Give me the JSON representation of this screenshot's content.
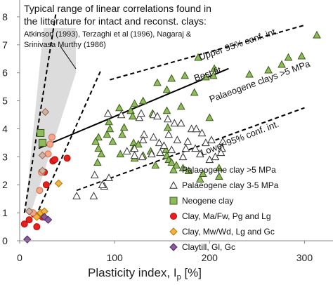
{
  "chart_data": {
    "type": "scatter",
    "xlabel_main": "Plasticity index, I",
    "xlabel_sub": "p",
    "xlabel_unit": " [%]",
    "xlim": [
      0,
      330
    ],
    "ylim": [
      0,
      8.6
    ],
    "xticks": [
      0,
      100,
      200,
      300
    ],
    "yticks": [
      0,
      1,
      2,
      3,
      4,
      5,
      6,
      7,
      8
    ],
    "grid": false,
    "legend_position": "lower-right",
    "annotations": {
      "title_line1": "Typical range of  linear correlations found in",
      "title_line2": "the litterature for intact and reconst. clays:",
      "refs_line1": "Atkinson (1993), Terzaghi et al (1996), Nagaraj &",
      "refs_line2": "Srinivasa Murthy (1986)",
      "upper_label": "Upper 95% conf. int.",
      "best_fit_label": "Best fit",
      "palaeogene_fit_label": "Palaeogene clays >5 MPa",
      "lower_label": "Lower 95% conf. int."
    },
    "lines": {
      "best_fit": [
        [
          20,
          3.3
        ],
        [
          220,
          6.15
        ]
      ],
      "upper_ci": [
        [
          95,
          5.75
        ],
        [
          300,
          7.7
        ]
      ],
      "lower_ci": [
        [
          60,
          1.8
        ],
        [
          300,
          4.75
        ]
      ],
      "range_left": [
        [
          5,
          1.0
        ],
        [
          38,
          8.1
        ]
      ],
      "range_right": [
        [
          20,
          1.1
        ],
        [
          85,
          6.05
        ]
      ]
    },
    "series": [
      {
        "name": "Palaeogene clay >5 MPa",
        "marker": "triangle-up",
        "color": "#8fbc5a",
        "edge": "#3d5a1e",
        "points": [
          [
            313,
            7.35
          ],
          [
            297,
            6.6
          ],
          [
            283,
            6.55
          ],
          [
            276,
            6.3
          ],
          [
            262,
            6.1
          ],
          [
            242,
            5.95
          ],
          [
            205,
            6.15
          ],
          [
            204,
            5.9
          ],
          [
            188,
            6.55
          ],
          [
            196,
            5.85
          ],
          [
            174,
            5.9
          ],
          [
            160,
            5.8
          ],
          [
            145,
            5.65
          ],
          [
            184,
            5.3
          ],
          [
            155,
            5.4
          ],
          [
            200,
            4.4
          ],
          [
            130,
            5.0
          ],
          [
            155,
            4.65
          ],
          [
            156,
            4.05
          ],
          [
            170,
            4.8
          ],
          [
            121,
            4.9
          ],
          [
            105,
            4.75
          ],
          [
            117,
            4.65
          ],
          [
            119,
            4.45
          ],
          [
            94,
            4.25
          ],
          [
            95,
            4.0
          ],
          [
            110,
            4.05
          ],
          [
            92,
            3.8
          ],
          [
            108,
            3.8
          ],
          [
            83,
            3.7
          ],
          [
            80,
            3.55
          ],
          [
            120,
            3.5
          ],
          [
            98,
            3.55
          ],
          [
            120,
            3.3
          ],
          [
            138,
            3.2
          ],
          [
            130,
            3.05
          ],
          [
            121,
            2.95
          ],
          [
            106,
            3.1
          ],
          [
            83,
            3.3
          ],
          [
            86,
            3.1
          ],
          [
            82,
            2.8
          ],
          [
            154,
            3.25
          ],
          [
            155,
            3.05
          ],
          [
            157,
            2.9
          ],
          [
            143,
            2.7
          ],
          [
            160,
            2.8
          ],
          [
            165,
            2.7
          ],
          [
            172,
            2.6
          ],
          [
            178,
            2.5
          ],
          [
            190,
            2.2
          ],
          [
            193,
            2.4
          ],
          [
            210,
            2.6
          ],
          [
            210,
            2.3
          ],
          [
            125,
            3.45
          ],
          [
            140,
            4.55
          ]
        ]
      },
      {
        "name": "Palaeogene clay 3-5 MPa",
        "marker": "triangle-up",
        "color": "#ffffff",
        "edge": "#333333",
        "points": [
          [
            93,
            4.55
          ],
          [
            107,
            4.5
          ],
          [
            126,
            4.4
          ],
          [
            128,
            4.55
          ],
          [
            141,
            4.5
          ],
          [
            145,
            4.45
          ],
          [
            156,
            4.35
          ],
          [
            163,
            4.2
          ],
          [
            170,
            4.2
          ],
          [
            181,
            4.0
          ],
          [
            186,
            4.0
          ],
          [
            192,
            3.85
          ],
          [
            202,
            3.6
          ],
          [
            196,
            3.5
          ],
          [
            214,
            3.55
          ],
          [
            213,
            3.3
          ],
          [
            212,
            3.15
          ],
          [
            206,
            3.0
          ],
          [
            200,
            2.9
          ],
          [
            141,
            3.7
          ],
          [
            131,
            3.8
          ],
          [
            130,
            3.6
          ],
          [
            147,
            3.5
          ],
          [
            157,
            3.8
          ],
          [
            166,
            3.6
          ],
          [
            177,
            3.55
          ],
          [
            175,
            3.3
          ],
          [
            172,
            3.0
          ],
          [
            185,
            3.3
          ],
          [
            190,
            3.1
          ],
          [
            160,
            3.25
          ],
          [
            148,
            3.15
          ],
          [
            129,
            3.0
          ],
          [
            121,
            3.05
          ],
          [
            139,
            3.1
          ],
          [
            113,
            3.2
          ],
          [
            121,
            3.3
          ],
          [
            152,
            3.4
          ],
          [
            94,
            2.25
          ],
          [
            89,
            1.95
          ],
          [
            79,
            2.35
          ],
          [
            60,
            1.6
          ],
          [
            87,
            2.0
          ],
          [
            78,
            1.6
          ]
        ]
      },
      {
        "name": "Neogene clay",
        "marker": "square",
        "color": "#8fbc5a",
        "edge": "#3d5a1e",
        "points": [
          [
            22,
            3.85
          ],
          [
            24,
            3.5
          ]
        ]
      },
      {
        "name": "Clay, Ma/Fw, Pg and Lg",
        "marker": "circle",
        "color": "#e8201c",
        "edge": "#b01010",
        "points": [
          [
            5,
            0.6
          ],
          [
            10,
            0.75
          ],
          [
            15,
            0.95
          ],
          [
            22,
            0.95
          ],
          [
            24,
            0.85
          ],
          [
            18,
            0.5
          ],
          [
            35,
            2.85
          ],
          [
            37,
            2.9
          ],
          [
            50,
            2.95
          ],
          [
            26,
            2.45
          ],
          [
            28,
            2.0
          ]
        ]
      },
      {
        "name": "Clay, Mw/Wd, Lg and Gc",
        "marker": "diamond",
        "color": "#f5b23c",
        "edge": "#b07810",
        "points": [
          [
            18,
            0.85
          ],
          [
            22,
            1.0
          ],
          [
            26,
            1.05
          ],
          [
            41,
            2.05
          ]
        ]
      },
      {
        "name": "Claytill, Gl, Gc",
        "marker": "diamond",
        "color": "#8a5a9e",
        "edge": "#4a2a5e",
        "points": [
          [
            8,
            0.05
          ],
          [
            26,
            0.85
          ],
          [
            30,
            0.75
          ]
        ]
      },
      {
        "name": "",
        "marker": "circle",
        "color": "#f4a58a",
        "edge": "#d07050",
        "points": [
          [
            34,
            3.7
          ],
          [
            32,
            3.45
          ],
          [
            30,
            3.1
          ],
          [
            23,
            2.45
          ],
          [
            21,
            1.8
          ],
          [
            14,
            1.0
          ]
        ]
      },
      {
        "name": "",
        "marker": "diamond",
        "color": "#d4b0a0",
        "edge": "#8a6a5a",
        "points": [
          [
            27,
            4.6
          ],
          [
            24,
            3.05
          ],
          [
            24,
            2.5
          ],
          [
            10,
            1.05
          ]
        ]
      }
    ]
  }
}
